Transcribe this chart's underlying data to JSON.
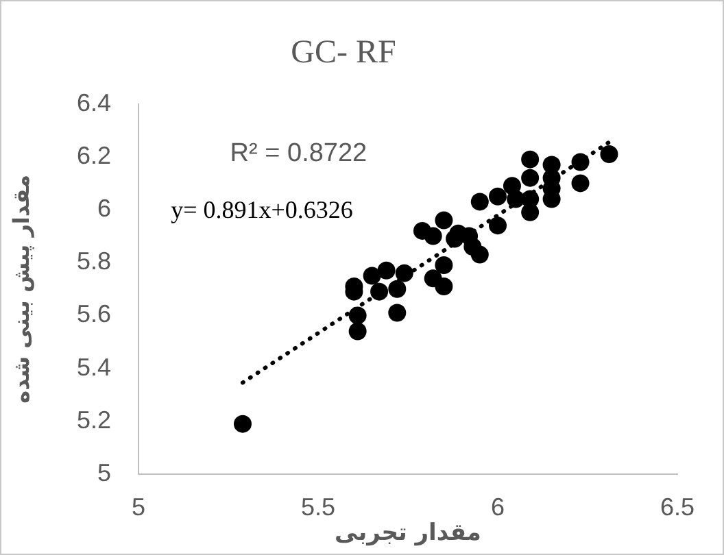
{
  "chart_data": {
    "type": "scatter",
    "title": "GC- RF",
    "xlabel": "مقدار تجربی",
    "ylabel": "مقدار پیش بینی شده",
    "annotations": [
      "R² = 0.8722",
      "y= 0.891x+0.6326"
    ],
    "xlim": [
      5,
      6.5
    ],
    "xticks": [
      5,
      5.5,
      6,
      6.5
    ],
    "ylim": [
      5,
      6.4
    ],
    "yticks": [
      5,
      5.2,
      5.4,
      5.6,
      5.8,
      6,
      6.2,
      6.4
    ],
    "grid": false,
    "legend": false,
    "marker": "circle",
    "series": [
      {
        "color": "#000000",
        "x": [
          5.29,
          5.61,
          5.61,
          5.6,
          5.6,
          5.65,
          5.67,
          5.69,
          5.72,
          5.72,
          5.74,
          5.79,
          5.82,
          5.82,
          5.85,
          5.85,
          5.85,
          5.88,
          5.89,
          5.92,
          5.93,
          5.95,
          5.95,
          6.0,
          6.0,
          6.04,
          6.05,
          6.09,
          6.09,
          6.09,
          6.09,
          6.15,
          6.15,
          6.15,
          6.15,
          6.23,
          6.23,
          6.31
        ],
        "values": [
          5.19,
          5.54,
          5.6,
          5.69,
          5.71,
          5.75,
          5.69,
          5.77,
          5.7,
          5.61,
          5.76,
          5.92,
          5.9,
          5.74,
          5.79,
          5.71,
          5.96,
          5.89,
          5.91,
          5.9,
          5.86,
          5.83,
          6.03,
          5.94,
          6.05,
          6.09,
          6.04,
          6.19,
          6.12,
          6.04,
          5.99,
          6.17,
          6.12,
          6.08,
          6.04,
          6.18,
          6.1,
          6.21
        ]
      },
      {
        "type": "line",
        "color": "#000000",
        "marker": "none",
        "line_style": "dotted",
        "x": [
          5.29,
          6.31
        ],
        "values": [
          5.346,
          6.255
        ]
      }
    ]
  }
}
